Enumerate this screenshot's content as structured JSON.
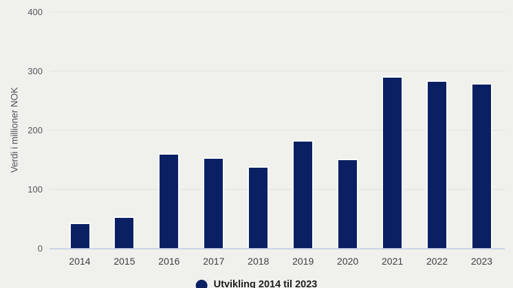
{
  "colors": {
    "background": "#f0f1ed",
    "bar": "#0b2063",
    "bar_outline": "#fafbf8",
    "gridline": "#e3e4e0",
    "baseline": "#ccd2e6",
    "tick_text": "#55565a",
    "axis_title_text": "#55565a",
    "xlabel_text": "#3c3d40",
    "legend_text": "#1d1d1f"
  },
  "chart_data": {
    "type": "bar",
    "title": "",
    "xlabel": "",
    "ylabel": "Verdi i millioner NOK",
    "categories": [
      "2014",
      "2015",
      "2016",
      "2017",
      "2018",
      "2019",
      "2020",
      "2021",
      "2022",
      "2023"
    ],
    "values": [
      43,
      53,
      160,
      153,
      138,
      182,
      151,
      291,
      284,
      279
    ],
    "ylim": [
      0,
      400
    ],
    "yticks": [
      0,
      100,
      200,
      300,
      400
    ],
    "grid": true,
    "legend": {
      "position": "bottom-center",
      "entries": [
        {
          "label": "Utvikling 2014 til 2023",
          "marker": "circle"
        }
      ]
    }
  }
}
